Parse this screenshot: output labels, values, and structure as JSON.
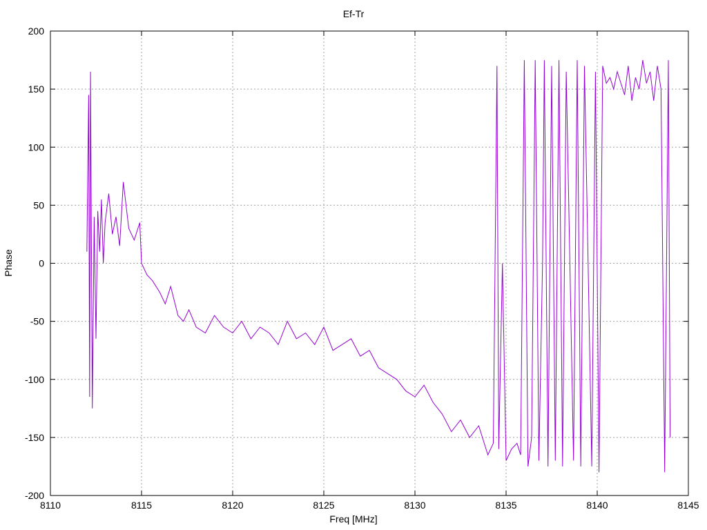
{
  "chart_data": {
    "type": "line",
    "title": "Ef-Tr",
    "xlabel": "Freq [MHz]",
    "ylabel": "Phase",
    "xlim": [
      8110,
      8145
    ],
    "ylim": [
      -200,
      200
    ],
    "xticks": [
      8110,
      8115,
      8120,
      8125,
      8130,
      8135,
      8140,
      8145
    ],
    "yticks": [
      -200,
      -150,
      -100,
      -50,
      0,
      50,
      100,
      150,
      200
    ],
    "xtick_labels": [
      "8110",
      "8115",
      "8120",
      "8125",
      "8130",
      "8135",
      "8140",
      "8145"
    ],
    "ytick_labels": [
      "-200",
      "-150",
      "-100",
      "-50",
      "0",
      "50",
      "100",
      "150",
      "200"
    ],
    "grid": true,
    "legend": "none",
    "line_color": "#9400d3",
    "series": [
      {
        "x": [
          8112.0,
          8112.1,
          8112.15,
          8112.2,
          8112.3,
          8112.4,
          8112.5,
          8112.6,
          8112.7,
          8112.8,
          8112.9,
          8113.0,
          8113.2,
          8113.4,
          8113.6,
          8113.8,
          8114.0,
          8114.3,
          8114.6,
          8114.9,
          8115.0,
          8115.3,
          8115.6,
          8116.0,
          8116.3,
          8116.6,
          8117.0,
          8117.3,
          8117.6,
          8118.0,
          8118.5,
          8119.0,
          8119.5,
          8120.0,
          8120.5,
          8121.0,
          8121.5,
          8122.0,
          8122.5,
          8123.0,
          8123.5,
          8124.0,
          8124.5,
          8125.0,
          8125.5,
          8126.0,
          8126.5,
          8127.0,
          8127.5,
          8128.0,
          8128.5,
          8129.0,
          8129.5,
          8130.0,
          8130.5,
          8131.0,
          8131.5,
          8132.0,
          8132.5,
          8133.0,
          8133.5,
          8134.0,
          8134.3,
          8134.5,
          8134.6,
          8134.8,
          8135.0,
          8135.3,
          8135.6,
          8135.8,
          8136.0,
          8136.2,
          8136.4,
          8136.6,
          8136.8,
          8137.0,
          8137.1,
          8137.3,
          8137.5,
          8137.7,
          8137.9,
          8138.1,
          8138.3,
          8138.5,
          8138.7,
          8138.9,
          8139.1,
          8139.3,
          8139.5,
          8139.7,
          8139.9,
          8140.1,
          8140.3,
          8140.5,
          8140.7,
          8140.9,
          8141.1,
          8141.3,
          8141.5,
          8141.7,
          8141.9,
          8142.1,
          8142.3,
          8142.5,
          8142.7,
          8142.9,
          8143.1,
          8143.3,
          8143.5,
          8143.7,
          8143.9,
          8144.0
        ],
        "y": [
          10,
          145,
          -115,
          165,
          -125,
          40,
          -65,
          45,
          10,
          55,
          0,
          35,
          60,
          25,
          40,
          15,
          70,
          30,
          20,
          35,
          0,
          -10,
          -15,
          -25,
          -35,
          -20,
          -45,
          -50,
          -40,
          -55,
          -60,
          -45,
          -55,
          -60,
          -50,
          -65,
          -55,
          -60,
          -70,
          -50,
          -65,
          -60,
          -70,
          -55,
          -75,
          -70,
          -65,
          -80,
          -75,
          -90,
          -95,
          -100,
          -110,
          -115,
          -105,
          -120,
          -130,
          -145,
          -135,
          -150,
          -140,
          -165,
          -155,
          170,
          -160,
          0,
          -170,
          -160,
          -155,
          -165,
          175,
          -175,
          -150,
          175,
          -170,
          0,
          175,
          -175,
          170,
          -170,
          175,
          -175,
          165,
          0,
          -170,
          175,
          -175,
          170,
          0,
          -175,
          165,
          -180,
          170,
          155,
          160,
          150,
          165,
          155,
          145,
          170,
          140,
          160,
          150,
          175,
          155,
          165,
          140,
          170,
          150,
          -180,
          175,
          -150
        ]
      }
    ]
  }
}
